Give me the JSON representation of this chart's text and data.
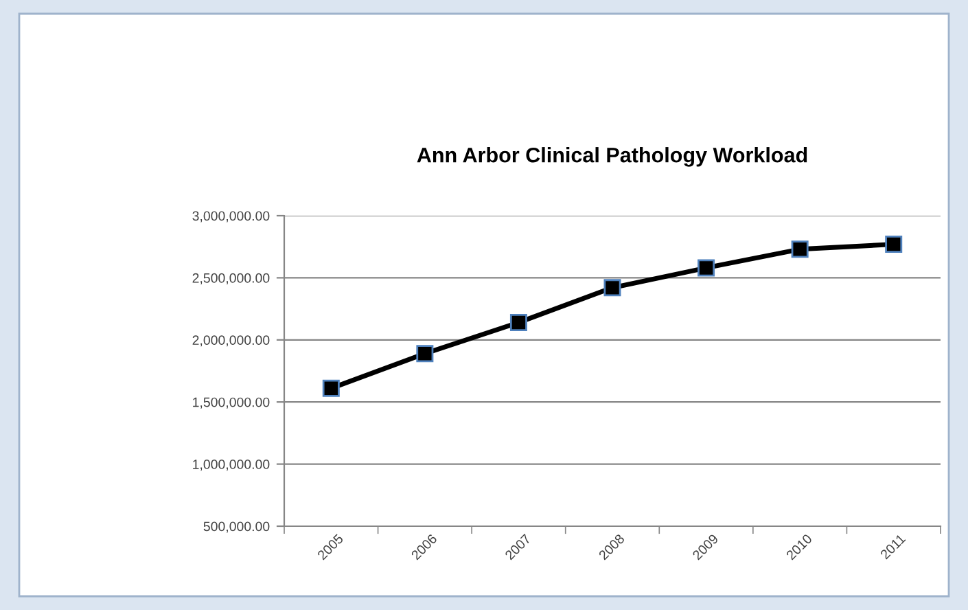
{
  "chart_data": {
    "type": "line",
    "title": "Ann Arbor Clinical Pathology Workload",
    "categories": [
      "2005",
      "2006",
      "2007",
      "2008",
      "2009",
      "2010",
      "2011"
    ],
    "series": [
      {
        "color": "#000000",
        "values": [
          1610000,
          1890000,
          2140000,
          2420000,
          2580000,
          2730000,
          2770000
        ]
      }
    ],
    "ylim": [
      500000,
      3000000
    ],
    "yticks": [
      {
        "value": 500000,
        "label": "500,000.00"
      },
      {
        "value": 1000000,
        "label": "1,000,000.00"
      },
      {
        "value": 1500000,
        "label": "1,500,000.00"
      },
      {
        "value": 2000000,
        "label": "2,000,000.00"
      },
      {
        "value": 2500000,
        "label": "2,500,000.00"
      },
      {
        "value": 3000000,
        "label": "3,000,000.00"
      }
    ],
    "grid": "y",
    "legend": false,
    "marker": "square",
    "line_style": "solid"
  }
}
